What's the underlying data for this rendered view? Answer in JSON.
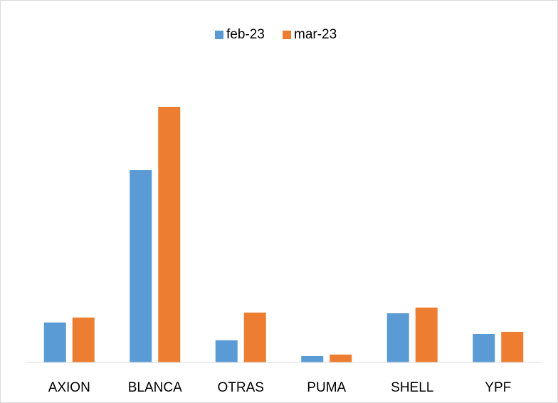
{
  "chart_data": {
    "type": "bar",
    "categories": [
      "AXION",
      "BLANCA",
      "OTRAS",
      "PUMA",
      "SHELL",
      "YPF"
    ],
    "series": [
      {
        "name": "feb-23",
        "color": "#5b9bd5",
        "values": [
          56,
          270,
          31,
          9,
          69,
          40
        ]
      },
      {
        "name": "mar-23",
        "color": "#ed7d31",
        "values": [
          63,
          359,
          70,
          11,
          77,
          43
        ]
      }
    ],
    "ylim": [
      0,
      400
    ],
    "legend": "top"
  }
}
